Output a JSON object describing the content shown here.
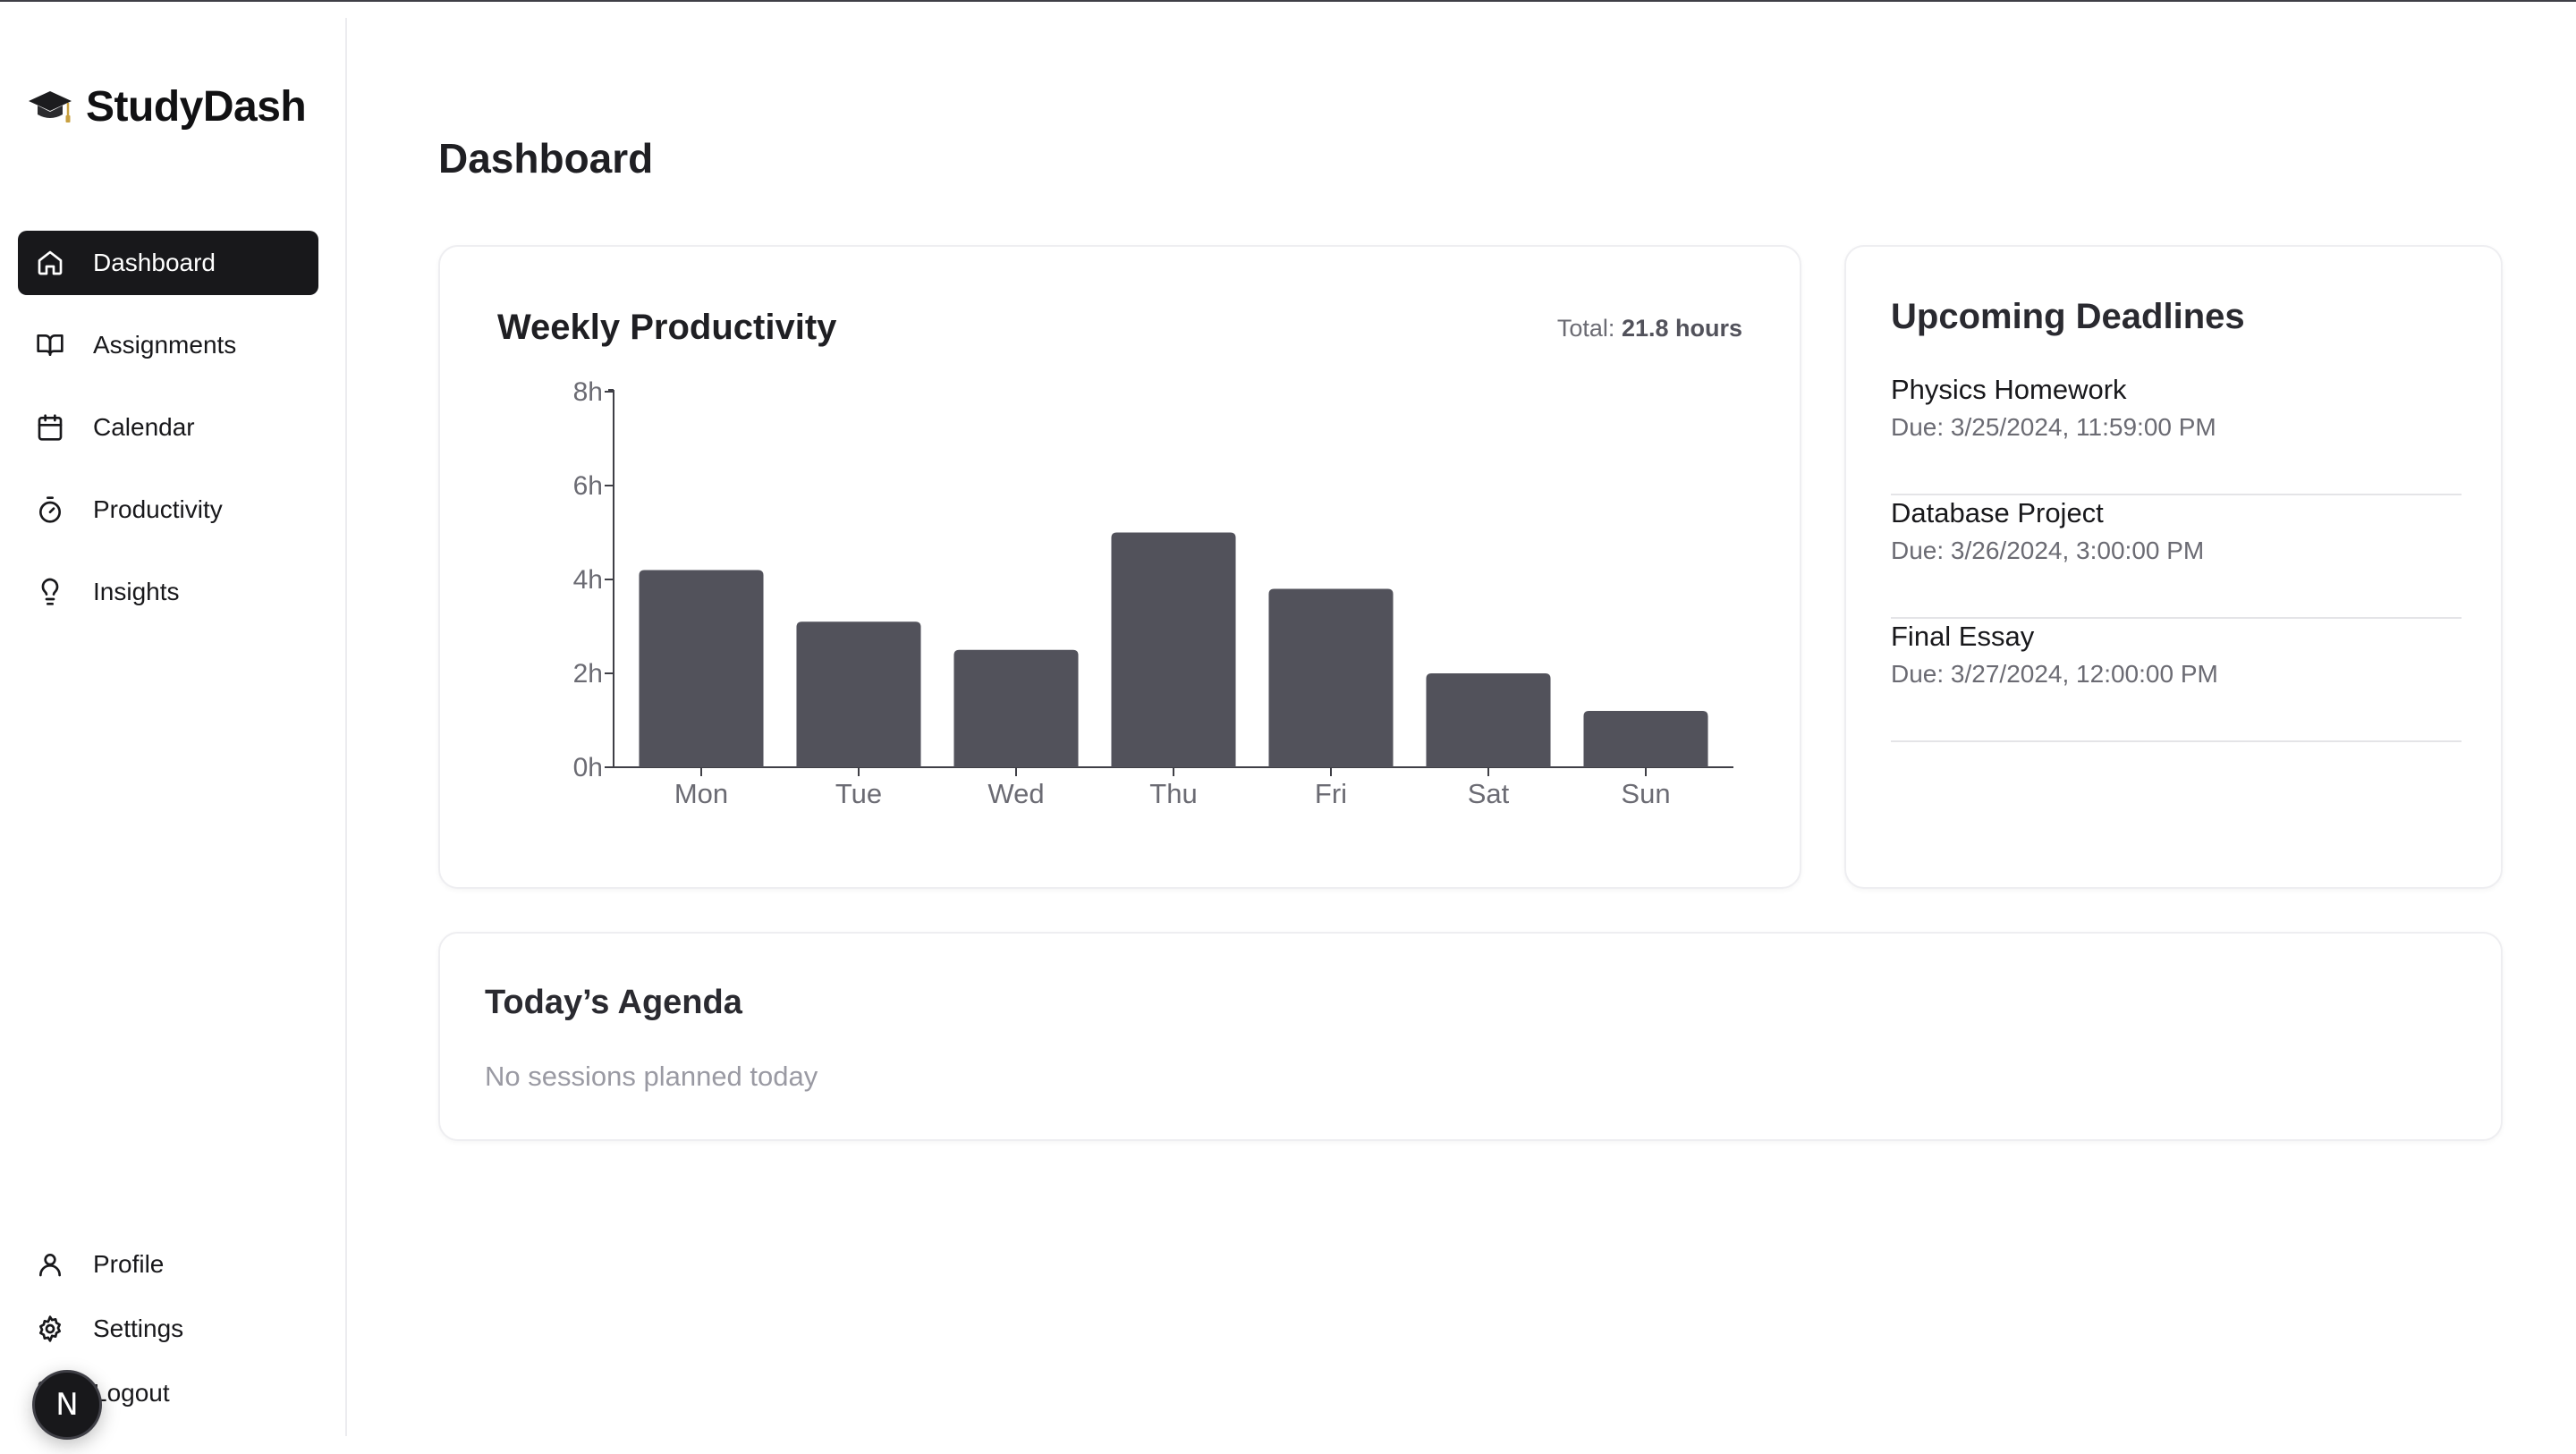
{
  "app": {
    "name": "StudyDash",
    "icon": "graduation-cap-icon"
  },
  "nav": {
    "items": [
      {
        "label": "Dashboard",
        "icon": "home-icon",
        "active": true
      },
      {
        "label": "Assignments",
        "icon": "book-open-icon",
        "active": false
      },
      {
        "label": "Calendar",
        "icon": "calendar-icon",
        "active": false
      },
      {
        "label": "Productivity",
        "icon": "timer-icon",
        "active": false
      },
      {
        "label": "Insights",
        "icon": "lightbulb-icon",
        "active": false
      }
    ],
    "bottom": [
      {
        "label": "Profile",
        "icon": "user-icon"
      },
      {
        "label": "Settings",
        "icon": "gear-icon"
      },
      {
        "label": "Logout",
        "icon": "logout-icon"
      }
    ]
  },
  "avatar": {
    "letter": "N"
  },
  "page": {
    "title": "Dashboard"
  },
  "productivity": {
    "title": "Weekly Productivity",
    "total_label": "Total:",
    "total_value": "21.8 hours"
  },
  "chart_data": {
    "type": "bar",
    "categories": [
      "Mon",
      "Tue",
      "Wed",
      "Thu",
      "Fri",
      "Sat",
      "Sun"
    ],
    "values": [
      4.2,
      3.1,
      2.5,
      5.0,
      3.8,
      2.0,
      1.2
    ],
    "yticks": [
      "0h",
      "2h",
      "4h",
      "6h",
      "8h"
    ],
    "ylim": [
      0,
      8
    ],
    "title": "",
    "xlabel": "",
    "ylabel": "",
    "grid": false,
    "bar_color": "#52525b"
  },
  "deadlines": {
    "title": "Upcoming Deadlines",
    "items": [
      {
        "name": "Physics Homework",
        "due": "Due: 3/25/2024, 11:59:00 PM"
      },
      {
        "name": "Database Project",
        "due": "Due: 3/26/2024, 3:00:00 PM"
      },
      {
        "name": "Final Essay",
        "due": "Due: 3/27/2024, 12:00:00 PM"
      }
    ]
  },
  "agenda": {
    "title": "Today’s Agenda",
    "empty": "No sessions planned today"
  }
}
